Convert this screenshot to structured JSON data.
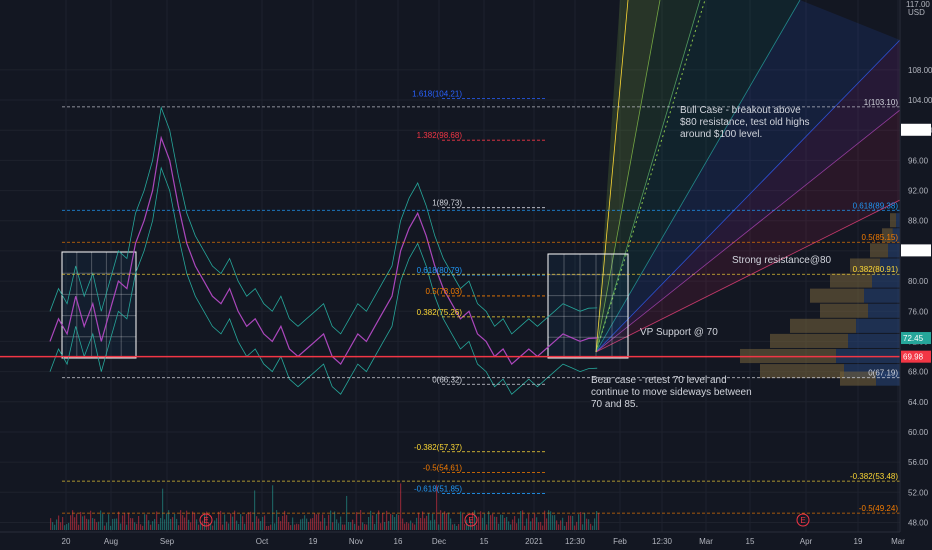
{
  "chart_data": {
    "type": "line",
    "currency": "USD",
    "y_axis": {
      "range": [
        47,
        117
      ],
      "ticks": [
        48,
        52,
        56,
        60,
        64,
        68,
        72,
        76,
        80,
        84,
        88,
        92,
        96,
        100,
        104,
        108
      ],
      "top_label": "117.00"
    },
    "x_axis": {
      "tick_labels": [
        "20",
        "Aug",
        "Sep",
        "Oct",
        "19",
        "Nov",
        "16",
        "Dec",
        "15",
        "2021",
        "12:30",
        "Feb",
        "12:30",
        "Mar",
        "15",
        "Apr",
        "19",
        "Mar"
      ]
    },
    "price_badges": [
      {
        "label": "100.06",
        "value": 100.06,
        "bg": "#ffffff",
        "fg": "#131722"
      },
      {
        "label": "84.07",
        "value": 84.07,
        "bg": "#ffffff",
        "fg": "#131722"
      },
      {
        "label": "72.45",
        "value": 72.45,
        "bg": "#26a69a",
        "fg": "#ffffff"
      },
      {
        "label": "69.98",
        "value": 69.98,
        "bg": "#f23645",
        "fg": "#ffffff"
      }
    ],
    "fib_left": [
      {
        "label": "1.618(104.21)",
        "value": 104.21,
        "color": "#2962ff"
      },
      {
        "label": "1.382(98.68)",
        "value": 98.68,
        "color": "#f23645"
      },
      {
        "label": "1(89.73)",
        "value": 89.73,
        "color": "#d1d4dc"
      },
      {
        "label": "0.618(80.79)",
        "value": 80.79,
        "color": "#2196f3"
      },
      {
        "label": "0.5(78.03)",
        "value": 78.03,
        "color": "#f57c00"
      },
      {
        "label": "0.382(75.26)",
        "value": 75.26,
        "color": "#fdd835"
      },
      {
        "label": "0(66.32)",
        "value": 66.32,
        "color": "#d1d4dc"
      },
      {
        "label": "-0.382(57.37)",
        "value": 57.37,
        "color": "#fdd835"
      },
      {
        "label": "-0.5(54.61)",
        "value": 54.61,
        "color": "#f57c00"
      },
      {
        "label": "-0.618(51.85)",
        "value": 51.85,
        "color": "#2196f3"
      }
    ],
    "fib_right": [
      {
        "label": "1(103.10)",
        "value": 103.1,
        "color": "#d1d4dc"
      },
      {
        "label": "0.618(89.38)",
        "value": 89.38,
        "color": "#2196f3"
      },
      {
        "label": "0.5(85.15)",
        "value": 85.15,
        "color": "#f57c00"
      },
      {
        "label": "0.382(80.91)",
        "value": 80.91,
        "color": "#fdd835"
      },
      {
        "label": "0(67.19)",
        "value": 67.19,
        "color": "#d1d4dc"
      },
      {
        "label": "-0.382(53.48)",
        "value": 53.48,
        "color": "#fdd835"
      },
      {
        "label": "-0.5(49.24)",
        "value": 49.24,
        "color": "#f57c00"
      }
    ],
    "support_line": {
      "value": 69.98,
      "color": "#f23645"
    },
    "annotations": {
      "bull_case": [
        "Bull Case - breakout above",
        "$80 resistance, test old highs",
        "around $100 level."
      ],
      "strong_resistance": "Strong resistance@80",
      "vp_support": "VP Support @ 70",
      "bear_case": [
        "Bear case - retest 70 level and",
        "continue to move sideways between",
        "70 and 85."
      ]
    },
    "earnings_markers": [
      "E",
      "E",
      "E"
    ],
    "price_series": {
      "name": "",
      "x": [
        0,
        2,
        4,
        6,
        8,
        10,
        12,
        14,
        16,
        18,
        20,
        22,
        24,
        26,
        28,
        30,
        32,
        34,
        36,
        38,
        40,
        42,
        44,
        46,
        48,
        50,
        52,
        54,
        56,
        58,
        60,
        62,
        64,
        66,
        68,
        70,
        72,
        74,
        76,
        78,
        80,
        82,
        84,
        86,
        88,
        90,
        92,
        94,
        96,
        98,
        100,
        102,
        104,
        106,
        108,
        110,
        112,
        114,
        116,
        118,
        120,
        122,
        124,
        126,
        128,
        130,
        132,
        134,
        136,
        138,
        140
      ],
      "y": [
        72,
        75,
        73,
        78,
        74,
        77,
        72,
        76,
        80,
        79,
        85,
        88,
        92,
        99,
        96,
        90,
        85,
        82,
        80,
        78,
        77,
        79,
        76,
        74,
        75,
        73,
        72,
        74,
        71,
        70,
        71,
        72,
        73,
        70,
        69,
        71,
        73,
        72,
        74,
        76,
        78,
        84,
        87,
        89,
        86,
        82,
        79,
        77,
        75,
        76,
        73,
        72,
        70,
        71,
        69,
        70,
        71,
        70,
        71,
        72,
        73,
        72.5,
        72,
        72.4,
        72.45,
        null,
        null,
        null,
        null,
        null,
        null
      ],
      "x_range": [
        0,
        140
      ]
    }
  }
}
